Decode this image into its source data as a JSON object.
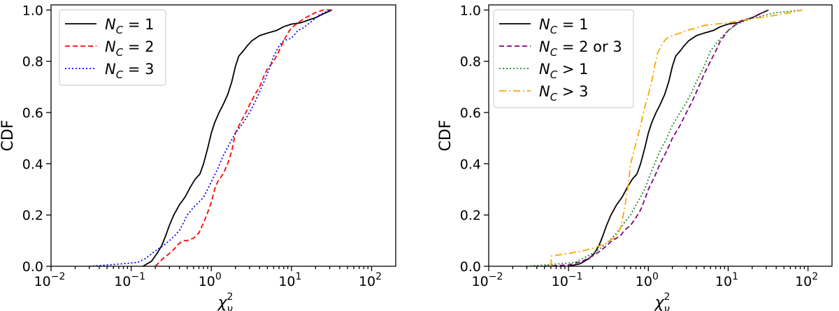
{
  "chart_data": [
    {
      "type": "line",
      "xscale": "log",
      "xlabel_base": "χ",
      "xlabel_sup": "2",
      "xlabel_sub": "ν",
      "ylabel": "CDF",
      "xlim": [
        0.01,
        200
      ],
      "ylim": [
        0.0,
        1.02
      ],
      "xticks": [
        0.01,
        0.1,
        1,
        10,
        100
      ],
      "xtick_labels": [
        {
          "base": "10",
          "exp": "−2"
        },
        {
          "base": "10",
          "exp": "−1"
        },
        {
          "base": "10",
          "exp": "0"
        },
        {
          "base": "10",
          "exp": "1"
        },
        {
          "base": "10",
          "exp": "2"
        }
      ],
      "yticks": [
        0.0,
        0.2,
        0.4,
        0.6,
        0.8,
        1.0
      ],
      "ytick_labels": [
        "0.0",
        "0.2",
        "0.4",
        "0.6",
        "0.8",
        "1.0"
      ],
      "legend_position": "upper-left",
      "series": [
        {
          "name": "N_C = 1",
          "label_main": "N",
          "label_sub": "C",
          "label_tail": " = 1",
          "color": "#000000",
          "dash": "",
          "x": [
            0.14,
            0.18,
            0.21,
            0.24,
            0.27,
            0.3,
            0.34,
            0.4,
            0.47,
            0.55,
            0.63,
            0.72,
            0.8,
            0.9,
            1.0,
            1.1,
            1.25,
            1.4,
            1.6,
            1.8,
            2.0,
            2.2,
            2.5,
            2.8,
            3.2,
            4.0,
            5.0,
            6.5,
            8.0,
            10.0,
            13.0,
            16.0,
            20.0,
            25.0,
            32.0
          ],
          "y": [
            0.0,
            0.02,
            0.05,
            0.08,
            0.12,
            0.16,
            0.2,
            0.24,
            0.27,
            0.31,
            0.34,
            0.36,
            0.4,
            0.46,
            0.52,
            0.56,
            0.6,
            0.63,
            0.67,
            0.72,
            0.78,
            0.82,
            0.84,
            0.86,
            0.88,
            0.9,
            0.91,
            0.92,
            0.935,
            0.945,
            0.95,
            0.96,
            0.97,
            0.985,
            1.0
          ]
        },
        {
          "name": "N_C = 2",
          "label_main": "N",
          "label_sub": "C",
          "label_tail": " = 2",
          "color": "#ff0000",
          "dash": "7,4",
          "x": [
            0.2,
            0.25,
            0.3,
            0.35,
            0.4,
            0.45,
            0.5,
            0.6,
            0.7,
            0.8,
            0.9,
            1.0,
            1.1,
            1.2,
            1.4,
            1.6,
            1.8,
            2.0,
            2.3,
            2.6,
            3.0,
            3.5,
            4.0,
            4.5,
            5.0,
            6.0,
            7.0,
            8.0,
            9.0,
            10.0,
            12.0,
            15.0,
            20.0,
            25.0,
            33.0
          ],
          "y": [
            0.0,
            0.03,
            0.05,
            0.07,
            0.09,
            0.1,
            0.1,
            0.11,
            0.13,
            0.17,
            0.21,
            0.25,
            0.3,
            0.33,
            0.36,
            0.4,
            0.45,
            0.52,
            0.56,
            0.59,
            0.63,
            0.67,
            0.7,
            0.74,
            0.77,
            0.8,
            0.84,
            0.88,
            0.91,
            0.93,
            0.95,
            0.97,
            0.99,
            1.0,
            1.0
          ]
        },
        {
          "name": "N_C = 3",
          "label_main": "N",
          "label_sub": "C",
          "label_tail": " = 3",
          "color": "#0000ff",
          "dash": "2,3",
          "x": [
            0.03,
            0.05,
            0.08,
            0.12,
            0.15,
            0.2,
            0.25,
            0.3,
            0.35,
            0.4,
            0.45,
            0.5,
            0.6,
            0.7,
            0.8,
            0.9,
            1.0,
            1.2,
            1.4,
            1.7,
            2.0,
            2.5,
            3.0,
            3.5,
            4.0,
            5.0,
            6.0,
            7.0,
            8.0,
            10.0,
            12.0,
            14.0,
            17.0,
            22.0,
            30.0
          ],
          "y": [
            0.0,
            0.005,
            0.01,
            0.015,
            0.03,
            0.06,
            0.08,
            0.1,
            0.12,
            0.14,
            0.17,
            0.2,
            0.23,
            0.25,
            0.27,
            0.3,
            0.33,
            0.38,
            0.43,
            0.48,
            0.52,
            0.56,
            0.6,
            0.64,
            0.68,
            0.75,
            0.82,
            0.86,
            0.88,
            0.89,
            0.92,
            0.93,
            0.95,
            0.98,
            1.0
          ]
        }
      ]
    },
    {
      "type": "line",
      "xscale": "log",
      "xlabel_base": "χ",
      "xlabel_sup": "2",
      "xlabel_sub": "ν",
      "ylabel": "CDF",
      "xlim": [
        0.01,
        200
      ],
      "ylim": [
        0.0,
        1.02
      ],
      "xticks": [
        0.01,
        0.1,
        1,
        10,
        100
      ],
      "xtick_labels": [
        {
          "base": "10",
          "exp": "−2"
        },
        {
          "base": "10",
          "exp": "−1"
        },
        {
          "base": "10",
          "exp": "0"
        },
        {
          "base": "10",
          "exp": "1"
        },
        {
          "base": "10",
          "exp": "2"
        }
      ],
      "yticks": [
        0.0,
        0.2,
        0.4,
        0.6,
        0.8,
        1.0
      ],
      "ytick_labels": [
        "0.0",
        "0.2",
        "0.4",
        "0.6",
        "0.8",
        "1.0"
      ],
      "legend_position": "upper-left",
      "series": [
        {
          "name": "N_C = 1",
          "label_main": "N",
          "label_sub": "C",
          "label_tail": " = 1",
          "color": "#000000",
          "dash": "",
          "x": [
            0.1,
            0.14,
            0.18,
            0.21,
            0.24,
            0.27,
            0.3,
            0.34,
            0.4,
            0.47,
            0.55,
            0.63,
            0.72,
            0.8,
            0.9,
            1.0,
            1.1,
            1.25,
            1.4,
            1.6,
            1.8,
            2.0,
            2.2,
            2.5,
            2.8,
            3.2,
            4.0,
            5.0,
            6.5,
            8.0,
            10.0,
            13.0,
            16.0,
            20.0,
            25.0,
            32.0
          ],
          "y": [
            0.0,
            0.01,
            0.03,
            0.05,
            0.08,
            0.12,
            0.16,
            0.2,
            0.24,
            0.27,
            0.31,
            0.34,
            0.36,
            0.4,
            0.46,
            0.52,
            0.56,
            0.6,
            0.63,
            0.67,
            0.72,
            0.78,
            0.82,
            0.84,
            0.86,
            0.88,
            0.9,
            0.91,
            0.92,
            0.935,
            0.945,
            0.95,
            0.96,
            0.97,
            0.985,
            1.0
          ]
        },
        {
          "name": "N_C = 2 or 3",
          "label_main": "N",
          "label_sub": "C",
          "label_tail": " = 2 or 3",
          "color": "#800080",
          "dash": "7,4",
          "x": [
            0.05,
            0.1,
            0.15,
            0.2,
            0.25,
            0.3,
            0.35,
            0.4,
            0.45,
            0.5,
            0.6,
            0.7,
            0.8,
            0.9,
            1.0,
            1.2,
            1.4,
            1.7,
            2.0,
            2.5,
            3.0,
            3.5,
            4.0,
            5.0,
            6.0,
            7.0,
            8.0,
            9.0,
            10.0,
            12.0,
            15.0,
            20.0,
            25.0,
            32.0
          ],
          "y": [
            0.0,
            0.005,
            0.02,
            0.04,
            0.06,
            0.08,
            0.1,
            0.11,
            0.12,
            0.14,
            0.16,
            0.19,
            0.22,
            0.26,
            0.3,
            0.35,
            0.4,
            0.45,
            0.5,
            0.55,
            0.6,
            0.64,
            0.68,
            0.75,
            0.8,
            0.84,
            0.88,
            0.9,
            0.92,
            0.94,
            0.96,
            0.97,
            0.985,
            1.0
          ]
        },
        {
          "name": "N_C > 1",
          "label_main": "N",
          "label_sub": "C",
          "label_tail": " > 1",
          "color": "#228b22",
          "dash": "2,3",
          "x": [
            0.03,
            0.05,
            0.08,
            0.12,
            0.15,
            0.2,
            0.25,
            0.3,
            0.35,
            0.4,
            0.45,
            0.5,
            0.6,
            0.7,
            0.8,
            0.9,
            1.0,
            1.2,
            1.4,
            1.7,
            2.0,
            2.5,
            3.0,
            3.5,
            4.0,
            5.0,
            6.0,
            8.0,
            10.0,
            13.0,
            17.0,
            25.0,
            40.0,
            60.0,
            85.0
          ],
          "y": [
            0.0,
            0.005,
            0.01,
            0.015,
            0.03,
            0.05,
            0.07,
            0.09,
            0.11,
            0.13,
            0.15,
            0.17,
            0.2,
            0.24,
            0.27,
            0.3,
            0.34,
            0.4,
            0.45,
            0.5,
            0.55,
            0.6,
            0.64,
            0.68,
            0.72,
            0.78,
            0.84,
            0.89,
            0.92,
            0.945,
            0.96,
            0.975,
            0.99,
            0.995,
            1.0
          ]
        },
        {
          "name": "N_C > 3",
          "label_main": "N",
          "label_sub": "C",
          "label_tail": " > 3",
          "color": "#ffa500",
          "dash": "10,4,2,4",
          "x": [
            0.06,
            0.061,
            0.1,
            0.15,
            0.2,
            0.3,
            0.4,
            0.45,
            0.5,
            0.55,
            0.6,
            0.7,
            0.8,
            0.9,
            1.0,
            1.1,
            1.2,
            1.3,
            1.5,
            1.7,
            2.0,
            2.5,
            3.0,
            4.0,
            5.0,
            7.0,
            10.0,
            15.0,
            25.0,
            40.0,
            60.0,
            85.0
          ],
          "y": [
            0.0,
            0.04,
            0.05,
            0.06,
            0.07,
            0.09,
            0.12,
            0.15,
            0.22,
            0.3,
            0.4,
            0.48,
            0.55,
            0.62,
            0.67,
            0.72,
            0.78,
            0.83,
            0.87,
            0.89,
            0.9,
            0.91,
            0.92,
            0.93,
            0.94,
            0.945,
            0.95,
            0.96,
            0.97,
            0.98,
            0.99,
            1.0
          ]
        }
      ]
    }
  ]
}
